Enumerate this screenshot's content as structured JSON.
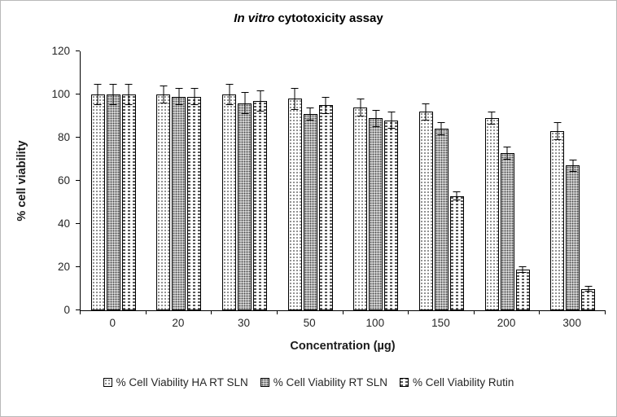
{
  "title": {
    "italic": "In vitro",
    "rest": " cytotoxicity assay"
  },
  "chart_data": {
    "type": "bar",
    "title": "In vitro cytotoxicity assay",
    "xlabel": "Concentration (µg)",
    "ylabel": "% cell viability",
    "ylim": [
      0,
      120
    ],
    "y_ticks": [
      0,
      20,
      40,
      60,
      80,
      100,
      120
    ],
    "grid": false,
    "legend_position": "bottom",
    "categories": [
      "0",
      "20",
      "30",
      "50",
      "100",
      "150",
      "200",
      "300"
    ],
    "series": [
      {
        "name": "% Cell Viability HA RT SLN",
        "pattern": "dots-light",
        "values": [
          100,
          100,
          100,
          98,
          94,
          92,
          89,
          83
        ],
        "errors": [
          5,
          4,
          5,
          5,
          4,
          4,
          3,
          4
        ]
      },
      {
        "name": "% Cell Viability RT SLN",
        "pattern": "dots-dense",
        "values": [
          100,
          99,
          96,
          91,
          89,
          84,
          73,
          67
        ],
        "errors": [
          5,
          4,
          5,
          3,
          4,
          3,
          3,
          3
        ]
      },
      {
        "name": "% Cell Viability Rutin",
        "pattern": "dashes",
        "values": [
          100,
          99,
          97,
          95,
          88,
          53,
          19,
          10
        ],
        "errors": [
          5,
          4,
          5,
          4,
          4,
          2,
          1.5,
          1.5
        ]
      }
    ]
  }
}
